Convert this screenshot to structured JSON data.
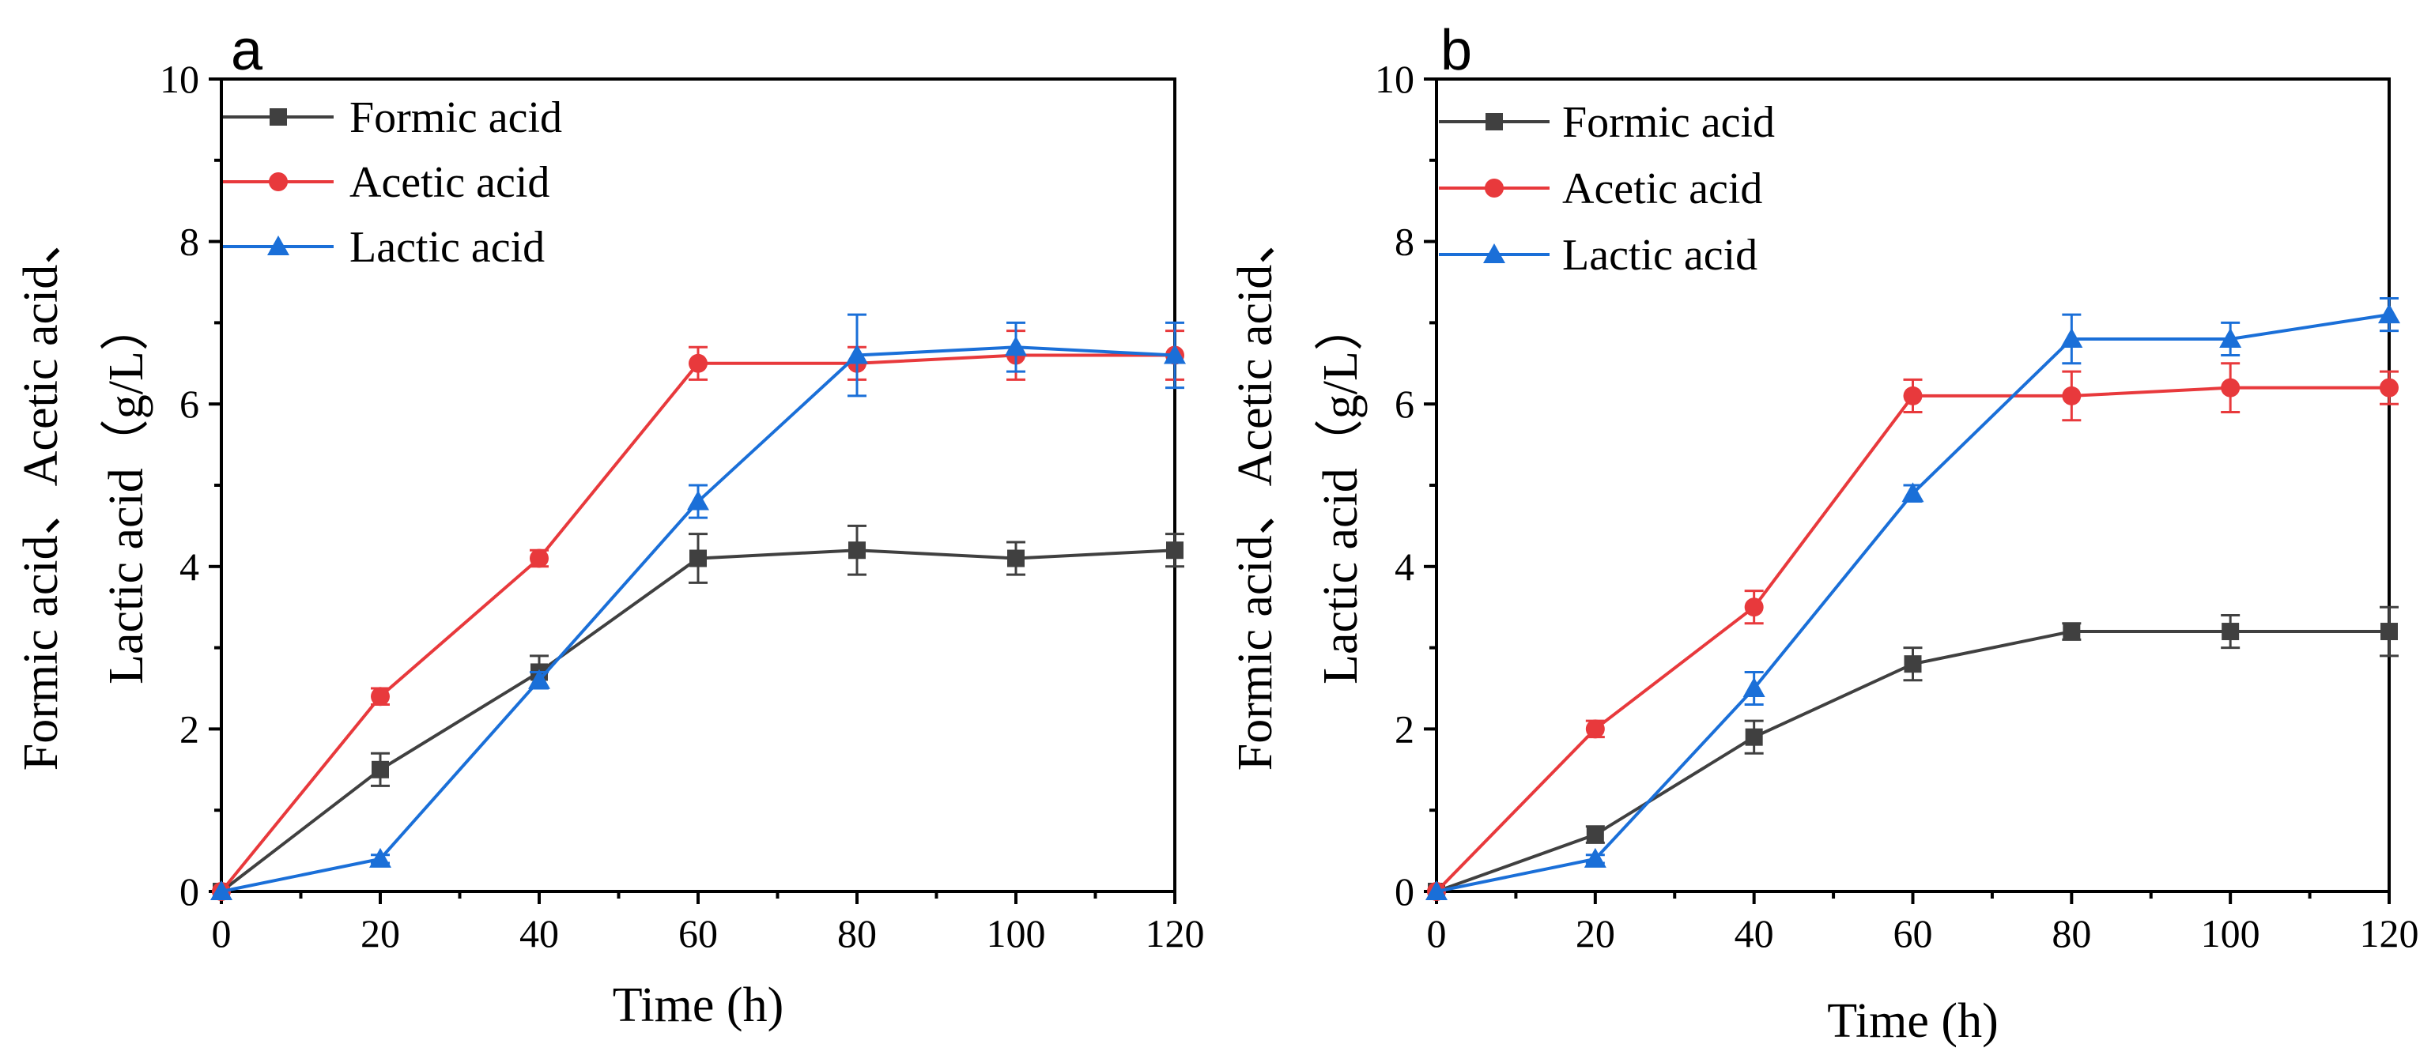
{
  "chart_data": [
    {
      "panel": "a",
      "type": "line",
      "xlabel": "Time (h)",
      "ylabel_lines": [
        "Formic acid、Acetic acid、",
        "Lactic acid（g/L）"
      ],
      "xlim": [
        0,
        120
      ],
      "ylim": [
        0,
        10
      ],
      "xticks": [
        0,
        20,
        40,
        60,
        80,
        100,
        120
      ],
      "yticks": [
        0,
        2,
        4,
        6,
        8,
        10
      ],
      "x": [
        0,
        20,
        40,
        60,
        80,
        100,
        120
      ],
      "legend_position": "top-left",
      "series": [
        {
          "name": "Formic acid",
          "color": "#404040",
          "marker": "square",
          "values": [
            0,
            1.5,
            2.7,
            4.1,
            4.2,
            4.1,
            4.2
          ],
          "errors": [
            0,
            0.2,
            0.2,
            0.3,
            0.3,
            0.2,
            0.2
          ]
        },
        {
          "name": "Acetic acid",
          "color": "#e8393c",
          "marker": "circle",
          "values": [
            0,
            2.4,
            4.1,
            6.5,
            6.5,
            6.6,
            6.6
          ],
          "errors": [
            0,
            0.1,
            0.1,
            0.2,
            0.2,
            0.3,
            0.3
          ]
        },
        {
          "name": "Lactic acid",
          "color": "#1a6fd8",
          "marker": "triangle",
          "values": [
            0,
            0.4,
            2.6,
            4.8,
            6.6,
            6.7,
            6.6
          ],
          "errors": [
            0,
            0.05,
            0.1,
            0.2,
            0.5,
            0.3,
            0.4
          ]
        }
      ]
    },
    {
      "panel": "b",
      "type": "line",
      "xlabel": "Time (h)",
      "ylabel_lines": [
        "Formic acid、Acetic acid、",
        "Lactic acid（g/L）"
      ],
      "xlim": [
        0,
        120
      ],
      "ylim": [
        0,
        10
      ],
      "xticks": [
        0,
        20,
        40,
        60,
        80,
        100,
        120
      ],
      "yticks": [
        0,
        2,
        4,
        6,
        8,
        10
      ],
      "x": [
        0,
        20,
        40,
        60,
        80,
        100,
        120
      ],
      "legend_position": "top-left",
      "series": [
        {
          "name": "Formic acid",
          "color": "#404040",
          "marker": "square",
          "values": [
            0,
            0.7,
            1.9,
            2.8,
            3.2,
            3.2,
            3.2
          ],
          "errors": [
            0,
            0.1,
            0.2,
            0.2,
            0.1,
            0.2,
            0.3
          ]
        },
        {
          "name": "Acetic acid",
          "color": "#e8393c",
          "marker": "circle",
          "values": [
            0,
            2.0,
            3.5,
            6.1,
            6.1,
            6.2,
            6.2
          ],
          "errors": [
            0,
            0.1,
            0.2,
            0.2,
            0.3,
            0.3,
            0.2
          ]
        },
        {
          "name": "Lactic acid",
          "color": "#1a6fd8",
          "marker": "triangle",
          "values": [
            0,
            0.4,
            2.5,
            4.9,
            6.8,
            6.8,
            7.1
          ],
          "errors": [
            0,
            0.05,
            0.2,
            0.1,
            0.3,
            0.2,
            0.2
          ]
        }
      ]
    }
  ]
}
